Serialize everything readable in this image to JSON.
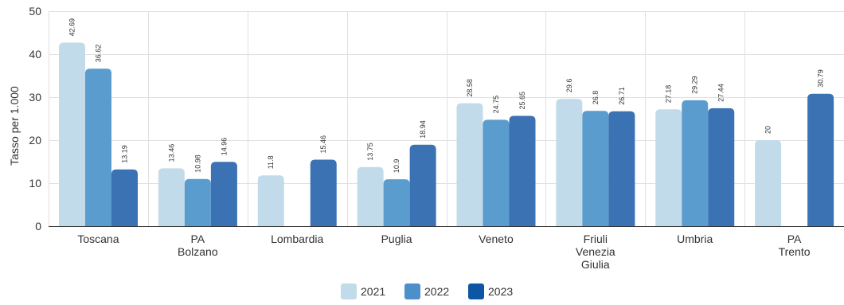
{
  "chart_data": {
    "type": "bar",
    "categories": [
      [
        "Toscana"
      ],
      [
        "PA",
        "Bolzano"
      ],
      [
        "Lombardia"
      ],
      [
        "Puglia"
      ],
      [
        "Veneto"
      ],
      [
        "Friuli",
        "Venezia",
        "Giulia"
      ],
      [
        "Umbria"
      ],
      [
        "PA",
        "Trento"
      ]
    ],
    "series": [
      {
        "name": "2021",
        "color": "#c2dbea",
        "values": [
          42.69,
          13.46,
          11.8,
          13.75,
          28.58,
          29.6,
          27.18,
          20
        ]
      },
      {
        "name": "2022",
        "color": "#5b9cce",
        "values": [
          36.62,
          10.98,
          null,
          10.9,
          24.75,
          26.8,
          29.29,
          null
        ]
      },
      {
        "name": "2023",
        "color": "#3a72b3",
        "values": [
          13.19,
          14.96,
          15.46,
          18.94,
          25.65,
          26.71,
          27.44,
          30.79
        ]
      }
    ],
    "legend_colors": [
      "#c2dbea",
      "#4d8fc8",
      "#0d56a4"
    ],
    "title": "",
    "xlabel": "",
    "ylabel": "Tasso per 1.000",
    "ylim": [
      0,
      50
    ],
    "yticks": [
      0,
      10,
      20,
      30,
      40,
      50
    ],
    "grid": true,
    "legend_position": "bottom"
  }
}
